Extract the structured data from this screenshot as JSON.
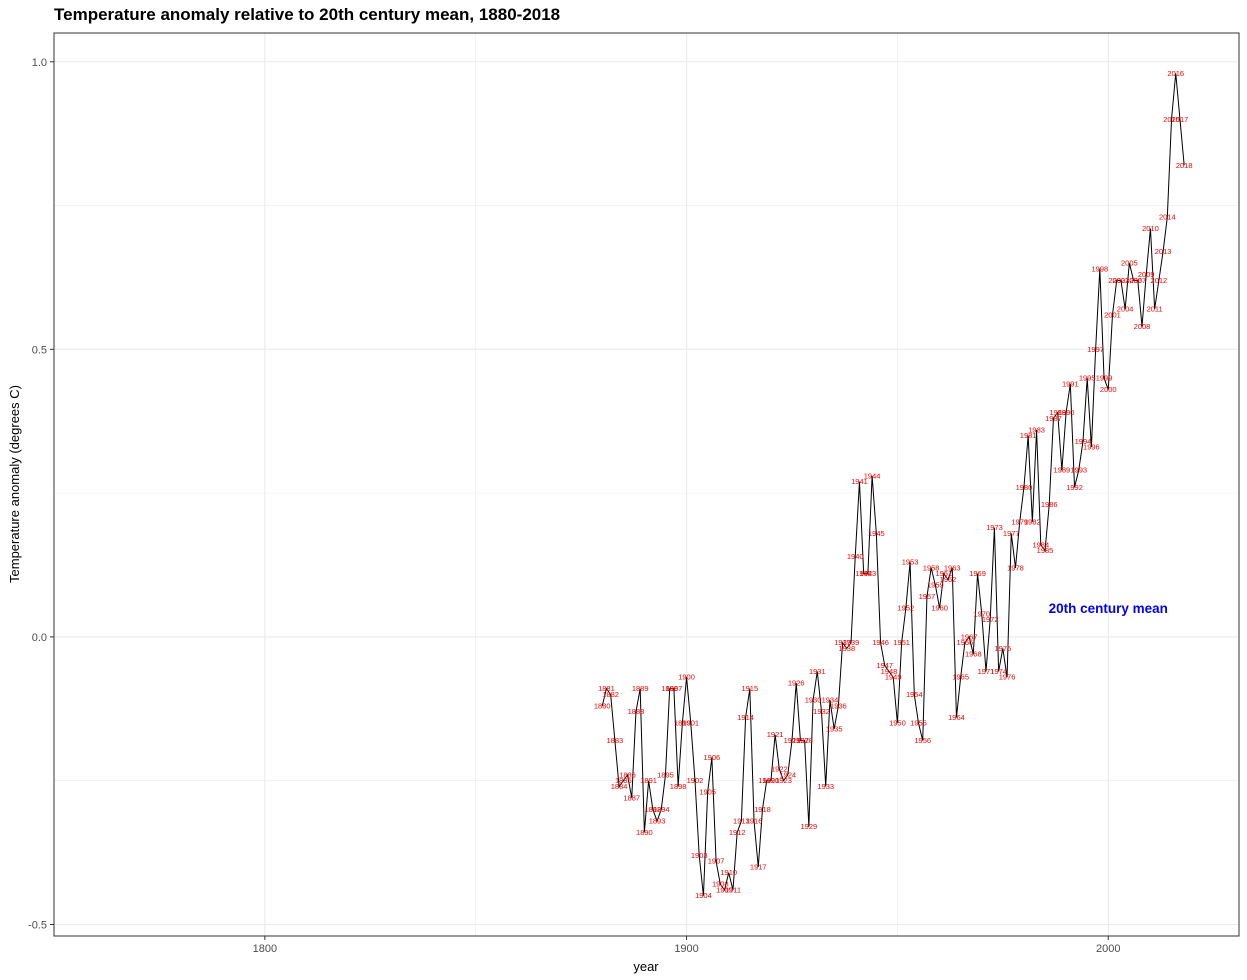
{
  "chart_data": {
    "type": "line",
    "title": "Temperature anomaly relative to 20th century mean, 1880-2018",
    "xlabel": "year",
    "ylabel": "Temperature anomaly (degrees C)",
    "xlim": [
      1750,
      2031
    ],
    "ylim": [
      -0.52,
      1.05
    ],
    "x_ticks": [
      1800,
      1900,
      2000
    ],
    "x_tick_labels": [
      "1800",
      "1900",
      "2000"
    ],
    "y_ticks": [
      -0.5,
      0.0,
      0.5,
      1.0
    ],
    "y_tick_labels": [
      "-0.5",
      "0.0",
      "0.5",
      "1.0"
    ],
    "grid": true,
    "annotation": {
      "text": "20th century mean",
      "x": 2000,
      "y": 0.05,
      "color": "#0000ff"
    },
    "colors": {
      "line": "#000000",
      "point_labels": "#ff0000",
      "grid": "#ebebeb",
      "panel_border": "#333333"
    },
    "series": [
      {
        "x": [
          1880,
          1881,
          1882,
          1883,
          1884,
          1885,
          1886,
          1887,
          1888,
          1889,
          1890,
          1891,
          1892,
          1893,
          1894,
          1895,
          1896,
          1897,
          1898,
          1899,
          1900,
          1901,
          1902,
          1903,
          1904,
          1905,
          1906,
          1907,
          1908,
          1909,
          1910,
          1911,
          1912,
          1913,
          1914,
          1915,
          1916,
          1917,
          1918,
          1919,
          1920,
          1921,
          1922,
          1923,
          1924,
          1925,
          1926,
          1927,
          1928,
          1929,
          1930,
          1931,
          1932,
          1933,
          1934,
          1935,
          1936,
          1937,
          1938,
          1939,
          1940,
          1941,
          1942,
          1943,
          1944,
          1945,
          1946,
          1947,
          1948,
          1949,
          1950,
          1951,
          1952,
          1953,
          1954,
          1955,
          1956,
          1957,
          1958,
          1959,
          1960,
          1961,
          1962,
          1963,
          1964,
          1965,
          1966,
          1967,
          1968,
          1969,
          1970,
          1971,
          1972,
          1973,
          1974,
          1975,
          1976,
          1977,
          1978,
          1979,
          1980,
          1981,
          1982,
          1983,
          1984,
          1985,
          1986,
          1987,
          1988,
          1989,
          1990,
          1991,
          1992,
          1993,
          1994,
          1995,
          1996,
          1997,
          1998,
          1999,
          2000,
          2001,
          2002,
          2003,
          2004,
          2005,
          2006,
          2007,
          2008,
          2009,
          2010,
          2011,
          2012,
          2013,
          2014,
          2015,
          2016,
          2017,
          2018
        ],
        "y": [
          -0.12,
          -0.09,
          -0.1,
          -0.18,
          -0.26,
          -0.25,
          -0.24,
          -0.28,
          -0.13,
          -0.09,
          -0.34,
          -0.25,
          -0.3,
          -0.32,
          -0.3,
          -0.24,
          -0.09,
          -0.09,
          -0.26,
          -0.15,
          -0.07,
          -0.15,
          -0.25,
          -0.38,
          -0.45,
          -0.27,
          -0.21,
          -0.39,
          -0.43,
          -0.44,
          -0.41,
          -0.44,
          -0.34,
          -0.32,
          -0.14,
          -0.09,
          -0.32,
          -0.4,
          -0.3,
          -0.25,
          -0.25,
          -0.17,
          -0.23,
          -0.25,
          -0.24,
          -0.18,
          -0.08,
          -0.18,
          -0.18,
          -0.33,
          -0.11,
          -0.06,
          -0.13,
          -0.26,
          -0.11,
          -0.16,
          -0.12,
          -0.01,
          -0.02,
          -0.01,
          0.14,
          0.27,
          0.11,
          0.11,
          0.28,
          0.18,
          -0.01,
          -0.05,
          -0.06,
          -0.07,
          -0.15,
          -0.01,
          0.05,
          0.13,
          -0.1,
          -0.15,
          -0.18,
          0.07,
          0.12,
          0.09,
          0.05,
          0.11,
          0.1,
          0.12,
          -0.14,
          -0.07,
          -0.01,
          0.0,
          -0.03,
          0.11,
          0.04,
          -0.06,
          0.03,
          0.19,
          -0.06,
          -0.02,
          -0.07,
          0.18,
          0.12,
          0.2,
          0.26,
          0.35,
          0.2,
          0.36,
          0.16,
          0.15,
          0.23,
          0.38,
          0.39,
          0.29,
          0.39,
          0.44,
          0.26,
          0.29,
          0.34,
          0.45,
          0.33,
          0.5,
          0.64,
          0.45,
          0.43,
          0.56,
          0.62,
          0.62,
          0.57,
          0.65,
          0.62,
          0.62,
          0.54,
          0.63,
          0.71,
          0.57,
          0.62,
          0.67,
          0.73,
          0.9,
          0.98,
          0.9,
          0.82
        ]
      }
    ]
  }
}
